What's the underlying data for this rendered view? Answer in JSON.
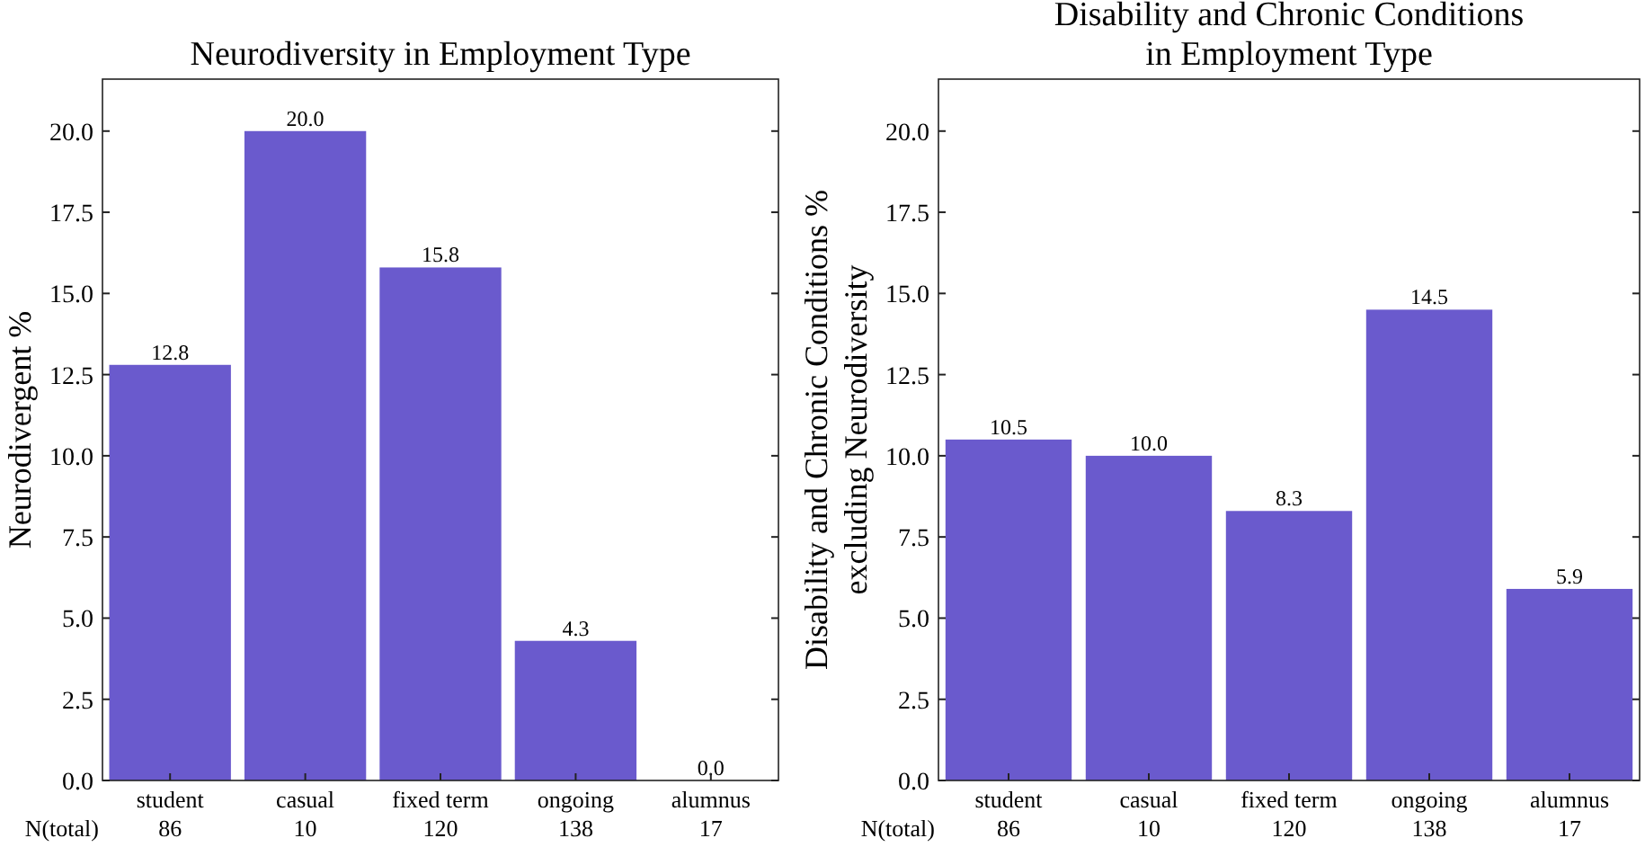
{
  "chart_data": [
    {
      "type": "bar",
      "title": "Neurodiversity in Employment Type",
      "ylabel": "Neurodivergent %",
      "categories": [
        "student\n86",
        "casual\n10",
        "fixed term\n120",
        "ongoing\n138",
        "alumnus\n17"
      ],
      "values": [
        12.8,
        20.0,
        15.8,
        4.3,
        0.0
      ],
      "value_labels": [
        "12.8",
        "20.0",
        "15.8",
        "4.3",
        "0.0"
      ],
      "color": "#6a5acd",
      "data_labels": true,
      "ylim": [
        0,
        21.6
      ],
      "yticks": [
        {
          "value": 0,
          "label": "0.0"
        },
        {
          "value": 2.5,
          "label": "2.5"
        },
        {
          "value": 5,
          "label": "5.0"
        },
        {
          "value": 7.5,
          "label": "7.5"
        },
        {
          "value": 10,
          "label": "10.0"
        },
        {
          "value": 12.5,
          "label": "12.5"
        },
        {
          "value": 15,
          "label": "15.0"
        },
        {
          "value": 17.5,
          "label": "17.5"
        },
        {
          "value": 20,
          "label": "20.0"
        }
      ],
      "annotations": [
        "N(total)"
      ]
    },
    {
      "type": "bar",
      "title": "Disability and Chronic Conditions\nin Employment Type",
      "ylabel": "Disability and Chronic Conditions %\nexcluding Neurodiversity",
      "categories": [
        "student\n86",
        "casual\n10",
        "fixed term\n120",
        "ongoing\n138",
        "alumnus\n17"
      ],
      "values": [
        10.5,
        10.0,
        8.3,
        14.5,
        5.9
      ],
      "value_labels": [
        "10.5",
        "10.0",
        "8.3",
        "14.5",
        "5.9"
      ],
      "color": "#6a5acd",
      "data_labels": true,
      "ylim": [
        0,
        21.6
      ],
      "yticks": [
        {
          "value": 0,
          "label": "0.0"
        },
        {
          "value": 2.5,
          "label": "2.5"
        },
        {
          "value": 5,
          "label": "5.0"
        },
        {
          "value": 7.5,
          "label": "7.5"
        },
        {
          "value": 10,
          "label": "10.0"
        },
        {
          "value": 12.5,
          "label": "12.5"
        },
        {
          "value": 15,
          "label": "15.0"
        },
        {
          "value": 17.5,
          "label": "17.5"
        },
        {
          "value": 20,
          "label": "20.0"
        }
      ],
      "annotations": [
        "N(total)"
      ]
    }
  ]
}
